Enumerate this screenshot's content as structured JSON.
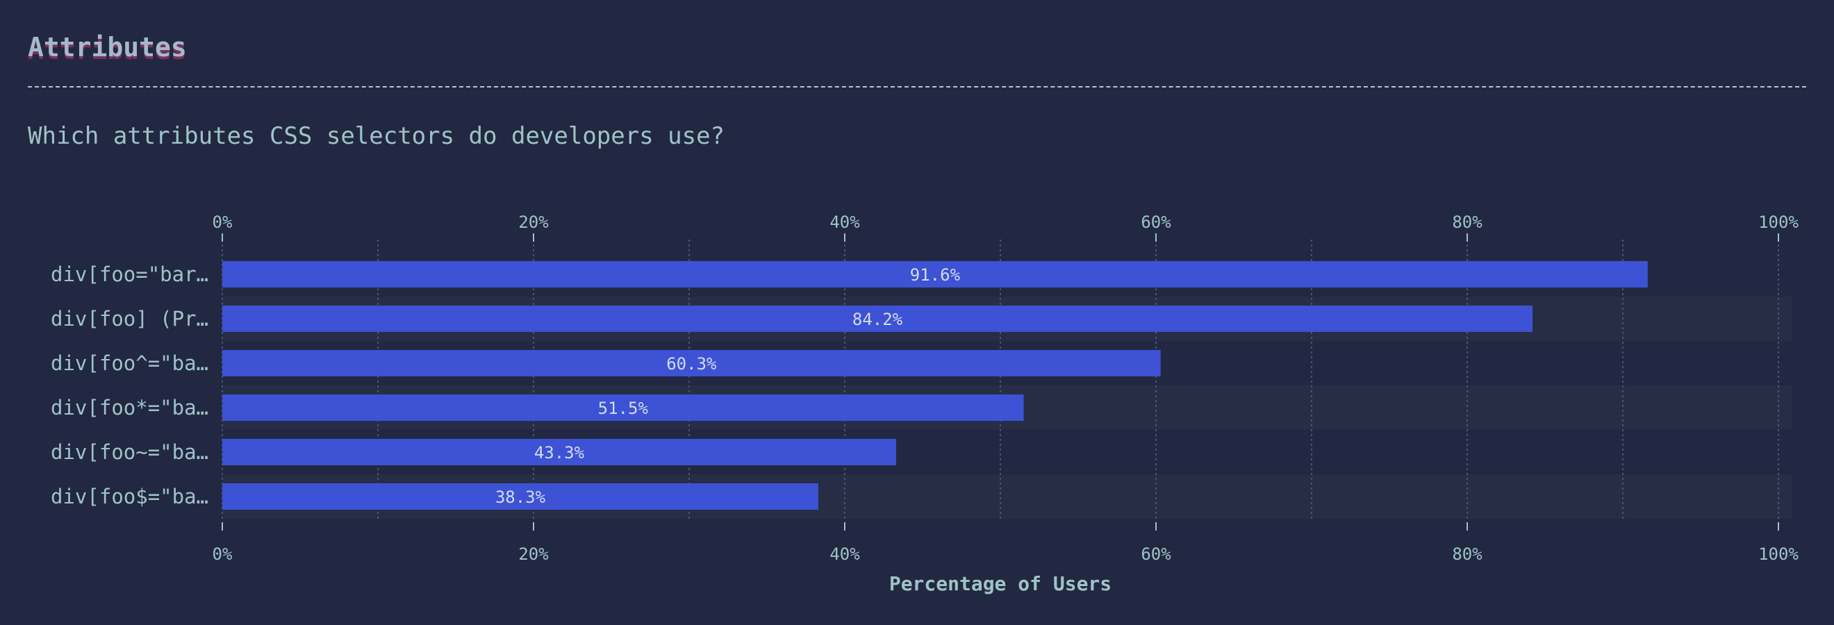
{
  "header": {
    "title": "Attributes",
    "subtitle": "Which attributes CSS selectors do developers use?"
  },
  "colors": {
    "background": "#222841",
    "bar": "#3d52d5",
    "stripe": "#272d45",
    "text": "#9fc3c7",
    "grid": "#59647e"
  },
  "chart_data": {
    "type": "bar",
    "orientation": "horizontal",
    "categories": [
      "div[foo=\"bar…",
      "div[foo] (Pr…",
      "div[foo^=\"ba…",
      "div[foo*=\"ba…",
      "div[foo~=\"ba…",
      "div[foo$=\"ba…"
    ],
    "values": [
      91.6,
      84.2,
      60.3,
      51.5,
      43.3,
      38.3
    ],
    "value_labels": [
      "91.6%",
      "84.2%",
      "60.3%",
      "51.5%",
      "43.3%",
      "38.3%"
    ],
    "xlim": [
      0,
      100
    ],
    "xticks": [
      0,
      20,
      40,
      60,
      80,
      100
    ],
    "xtick_labels": [
      "0%",
      "20%",
      "40%",
      "60%",
      "80%",
      "100%"
    ],
    "xlabel": "Percentage of Users",
    "grid": true
  }
}
